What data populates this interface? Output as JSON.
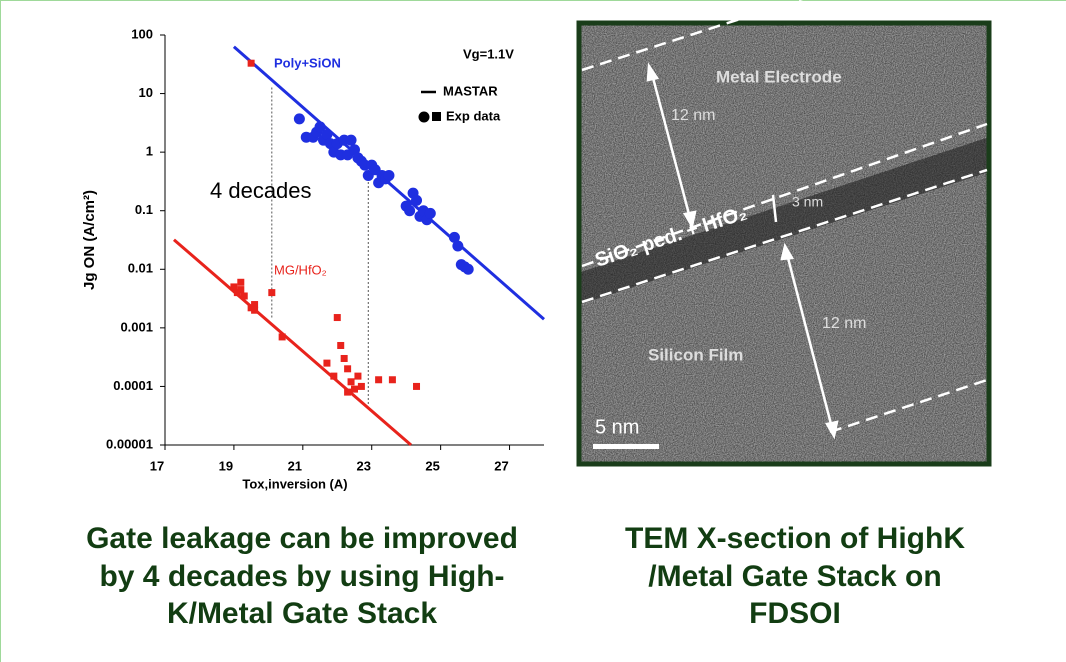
{
  "chart_data": {
    "type": "scatter",
    "xlabel": "Tox,inversion (A)",
    "ylabel": "Jg ON (A/cm²)",
    "xlim": [
      17,
      28
    ],
    "xticks": [
      17,
      19,
      21,
      23,
      25,
      27
    ],
    "ylim": [
      1e-05,
      100
    ],
    "yticks": [
      1e-05,
      0.0001,
      0.001,
      0.01,
      0.1,
      1,
      10,
      100
    ],
    "yscale": "log",
    "legend": [
      "MASTAR",
      "Exp data"
    ],
    "annotations": [
      "Vg=1.1V",
      "Poly+SiON",
      "MG/HfO₂",
      "4 decades"
    ],
    "series": [
      {
        "kind": "line",
        "color": "#1f2fe0",
        "x": [
          19.0,
          28
        ],
        "values": [
          63,
          0.0014
        ]
      },
      {
        "kind": "line",
        "color": "#e8231c",
        "x": [
          17.26,
          24.14
        ],
        "values": [
          0.032,
          1e-05
        ]
      },
      {
        "kind": "scatter",
        "marker": "circle",
        "color": "#1f2fe0",
        "x": [
          20.9,
          21.1,
          21.3,
          21.4,
          21.5,
          21.6,
          21.7,
          21.8,
          21.9,
          22.0,
          22.1,
          22.2,
          22.3,
          22.4,
          22.5,
          22.6,
          22.7,
          22.8,
          22.9,
          23.0,
          23.1,
          23.2,
          23.3,
          23.4,
          23.5,
          24.0,
          24.1,
          24.2,
          24.3,
          24.4,
          24.5,
          24.6,
          24.7,
          25.4,
          25.5,
          25.6,
          25.7,
          25.8
        ],
        "values": [
          3.7,
          1.8,
          1.8,
          2.2,
          2.7,
          1.6,
          2.0,
          1.4,
          1.0,
          1.4,
          0.9,
          1.6,
          0.9,
          1.6,
          1.1,
          0.8,
          0.7,
          0.6,
          0.4,
          0.6,
          0.5,
          0.3,
          0.4,
          0.35,
          0.4,
          0.12,
          0.1,
          0.2,
          0.15,
          0.08,
          0.1,
          0.07,
          0.09,
          0.035,
          0.025,
          0.012,
          0.011,
          0.01
        ]
      },
      {
        "kind": "scatter",
        "marker": "square",
        "color": "#e8231c",
        "x": [
          19.5,
          19.0,
          19.1,
          19.2,
          19.2,
          19.3,
          19.5,
          19.6,
          19.6,
          20.1,
          20.4,
          21.7,
          21.9,
          22.0,
          22.1,
          22.2,
          22.3,
          22.4,
          22.5,
          22.6,
          22.7,
          22.3,
          23.2,
          23.6,
          24.3
        ],
        "values": [
          33,
          0.005,
          0.004,
          0.006,
          0.0045,
          0.0035,
          0.0022,
          0.0025,
          0.002,
          0.004,
          0.0007,
          0.00025,
          0.00015,
          0.0015,
          0.0005,
          0.0003,
          0.0002,
          0.00012,
          9e-05,
          0.00015,
          0.0001,
          8e-05,
          0.00013,
          0.00013,
          0.0001
        ]
      }
    ],
    "guides": [
      {
        "x": 20.1,
        "y": [
          0.0015,
          13
        ]
      },
      {
        "x": 22.9,
        "y": [
          5e-05,
          0.5
        ]
      }
    ]
  },
  "tem_image": {
    "labels": [
      "Metal Electrode",
      "12 nm",
      "3 nm",
      "SiO₂ ped. + HfO₂",
      "12 nm",
      "Silicon Film",
      "5 nm"
    ]
  },
  "captions": {
    "left": [
      "Gate leakage can be improved",
      "by 4 decades by using High-",
      "K/Metal Gate Stack"
    ],
    "right": [
      "TEM X-section of HighK",
      "/Metal Gate Stack on",
      "FDSOI"
    ]
  }
}
